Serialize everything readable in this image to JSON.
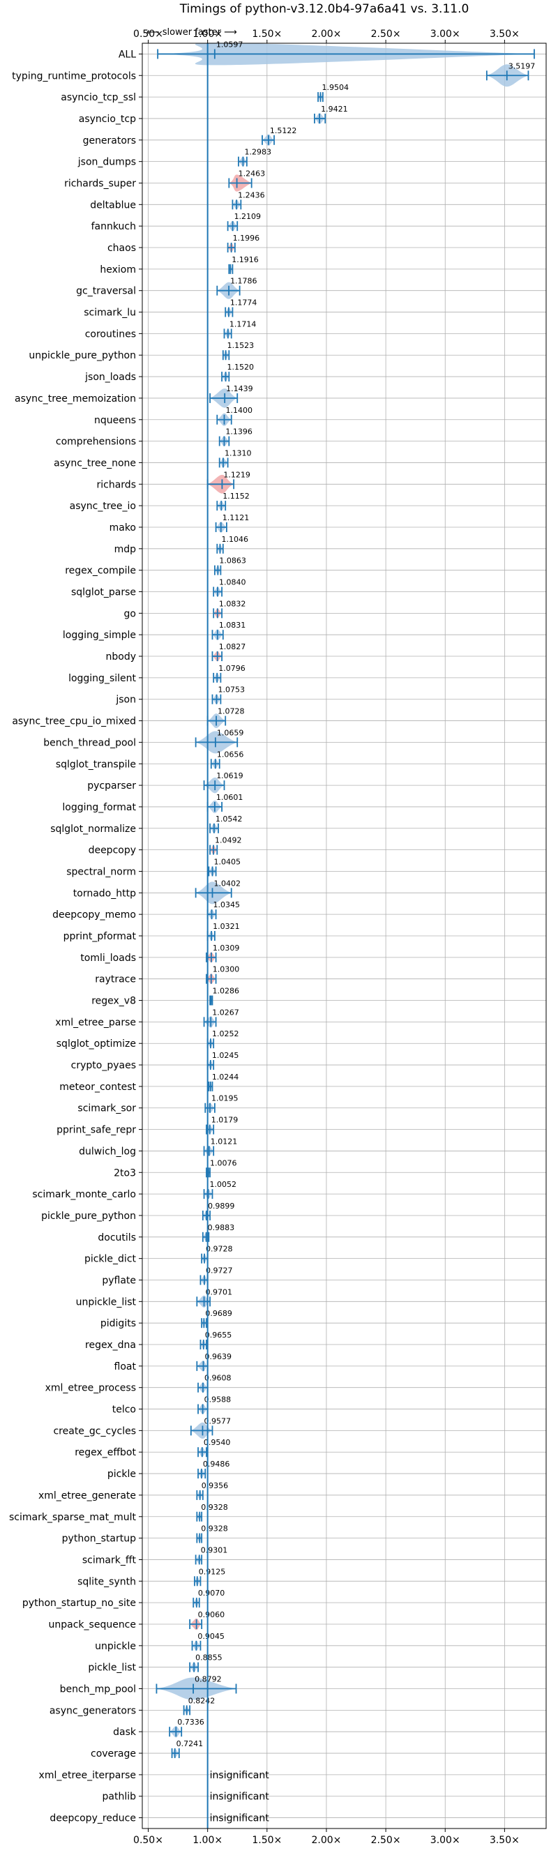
{
  "chart_data": {
    "type": "violin",
    "title": "Timings of python-v3.12.0b4-97a6a41 vs. 3.11.0",
    "direction_note": "⟵ slower   faster ⟶",
    "x_ticks": [
      "0.50×",
      "1.00×",
      "1.50×",
      "2.00×",
      "2.50×",
      "3.00×",
      "3.50×"
    ],
    "x_tick_values": [
      0.5,
      1.0,
      1.5,
      2.0,
      2.5,
      3.0,
      3.5
    ],
    "xlim": [
      0.45,
      3.85
    ],
    "reference_line": 1.0,
    "grid": true,
    "colors": {
      "faster": "#1f77b4",
      "slower": "#d62728",
      "violin_faster": "#a9c8e4",
      "violin_slower": "#f1a7a8"
    },
    "insignificant_label": "insignificant",
    "categories": [
      "ALL",
      "typing_runtime_protocols",
      "asyncio_tcp_ssl",
      "asyncio_tcp",
      "generators",
      "json_dumps",
      "richards_super",
      "deltablue",
      "fannkuch",
      "chaos",
      "hexiom",
      "gc_traversal",
      "scimark_lu",
      "coroutines",
      "unpickle_pure_python",
      "json_loads",
      "async_tree_memoization",
      "nqueens",
      "comprehensions",
      "async_tree_none",
      "richards",
      "async_tree_io",
      "mako",
      "mdp",
      "regex_compile",
      "sqlglot_parse",
      "go",
      "logging_simple",
      "nbody",
      "logging_silent",
      "json",
      "async_tree_cpu_io_mixed",
      "bench_thread_pool",
      "sqlglot_transpile",
      "pycparser",
      "logging_format",
      "sqlglot_normalize",
      "deepcopy",
      "spectral_norm",
      "tornado_http",
      "deepcopy_memo",
      "pprint_pformat",
      "tomli_loads",
      "raytrace",
      "regex_v8",
      "xml_etree_parse",
      "sqlglot_optimize",
      "crypto_pyaes",
      "meteor_contest",
      "scimark_sor",
      "pprint_safe_repr",
      "dulwich_log",
      "2to3",
      "scimark_monte_carlo",
      "pickle_pure_python",
      "docutils",
      "pickle_dict",
      "pyflate",
      "unpickle_list",
      "pidigits",
      "regex_dna",
      "float",
      "xml_etree_process",
      "telco",
      "create_gc_cycles",
      "regex_effbot",
      "pickle",
      "xml_etree_generate",
      "scimark_sparse_mat_mult",
      "python_startup",
      "scimark_fft",
      "sqlite_synth",
      "python_startup_no_site",
      "unpack_sequence",
      "unpickle",
      "pickle_list",
      "bench_mp_pool",
      "async_generators",
      "dask",
      "coverage",
      "xml_etree_iterparse",
      "pathlib",
      "deepcopy_reduce"
    ],
    "values": [
      1.0597,
      3.5197,
      1.9504,
      1.9421,
      1.5122,
      1.2983,
      1.2463,
      1.2436,
      1.2109,
      1.1996,
      1.1916,
      1.1786,
      1.1774,
      1.1714,
      1.1523,
      1.152,
      1.1439,
      1.14,
      1.1396,
      1.131,
      1.1219,
      1.1152,
      1.1121,
      1.1046,
      1.0863,
      1.084,
      1.0832,
      1.0831,
      1.0827,
      1.0796,
      1.0753,
      1.0728,
      1.0659,
      1.0656,
      1.0619,
      1.0601,
      1.0542,
      1.0492,
      1.0405,
      1.0402,
      1.0345,
      1.0321,
      1.0309,
      1.03,
      1.0286,
      1.0267,
      1.0252,
      1.0245,
      1.0244,
      1.0195,
      1.0179,
      1.0121,
      1.0076,
      1.0052,
      0.9899,
      0.9883,
      0.9728,
      0.9727,
      0.9701,
      0.9689,
      0.9655,
      0.9639,
      0.9608,
      0.9588,
      0.9577,
      0.954,
      0.9486,
      0.9356,
      0.9328,
      0.9328,
      0.9301,
      0.9125,
      0.907,
      0.906,
      0.9045,
      0.8855,
      0.8792,
      0.8242,
      0.7336,
      0.7241,
      null,
      null,
      null
    ],
    "value_labels": [
      "1.0597",
      "3.5197",
      "1.9504",
      "1.9421",
      "1.5122",
      "1.2983",
      "1.2463",
      "1.2436",
      "1.2109",
      "1.1996",
      "1.1916",
      "1.1786",
      "1.1774",
      "1.1714",
      "1.1523",
      "1.1520",
      "1.1439",
      "1.1400",
      "1.1396",
      "1.1310",
      "1.1219",
      "1.1152",
      "1.1121",
      "1.1046",
      "1.0863",
      "1.0840",
      "1.0832",
      "1.0831",
      "1.0827",
      "1.0796",
      "1.0753",
      "1.0728",
      "1.0659",
      "1.0656",
      "1.0619",
      "1.0601",
      "1.0542",
      "1.0492",
      "1.0405",
      "1.0402",
      "1.0345",
      "1.0321",
      "1.0309",
      "1.0300",
      "1.0286",
      "1.0267",
      "1.0252",
      "1.0245",
      "1.0244",
      "1.0195",
      "1.0179",
      "1.0121",
      "1.0076",
      "1.0052",
      "0.9899",
      "0.9883",
      "0.9728",
      "0.9727",
      "0.9701",
      "0.9689",
      "0.9655",
      "0.9639",
      "0.9608",
      "0.9588",
      "0.9577",
      "0.9540",
      "0.9486",
      "0.9356",
      "0.9328",
      "0.9328",
      "0.9301",
      "0.9125",
      "0.9070",
      "0.9060",
      "0.9045",
      "0.8855",
      "0.8792",
      "0.8242",
      "0.7336",
      "0.7241",
      "insignificant",
      "insignificant",
      "insignificant"
    ],
    "ranges": [
      [
        0.58,
        3.75
      ],
      [
        3.35,
        3.7
      ],
      [
        1.93,
        1.97
      ],
      [
        1.9,
        1.99
      ],
      [
        1.46,
        1.56
      ],
      [
        1.26,
        1.33
      ],
      [
        1.18,
        1.37
      ],
      [
        1.21,
        1.28
      ],
      [
        1.17,
        1.25
      ],
      [
        1.17,
        1.23
      ],
      [
        1.18,
        1.21
      ],
      [
        1.08,
        1.27
      ],
      [
        1.15,
        1.21
      ],
      [
        1.14,
        1.2
      ],
      [
        1.13,
        1.18
      ],
      [
        1.12,
        1.18
      ],
      [
        1.02,
        1.25
      ],
      [
        1.08,
        1.2
      ],
      [
        1.1,
        1.18
      ],
      [
        1.1,
        1.17
      ],
      [
        1.0,
        1.22
      ],
      [
        1.08,
        1.15
      ],
      [
        1.07,
        1.16
      ],
      [
        1.08,
        1.13
      ],
      [
        1.06,
        1.11
      ],
      [
        1.05,
        1.12
      ],
      [
        1.05,
        1.12
      ],
      [
        1.04,
        1.13
      ],
      [
        1.04,
        1.12
      ],
      [
        1.05,
        1.11
      ],
      [
        1.04,
        1.11
      ],
      [
        1.0,
        1.15
      ],
      [
        0.9,
        1.25
      ],
      [
        1.03,
        1.1
      ],
      [
        0.97,
        1.14
      ],
      [
        1.0,
        1.12
      ],
      [
        1.02,
        1.09
      ],
      [
        1.02,
        1.08
      ],
      [
        1.01,
        1.07
      ],
      [
        0.9,
        1.2
      ],
      [
        1.0,
        1.07
      ],
      [
        1.0,
        1.06
      ],
      [
        0.99,
        1.07
      ],
      [
        0.99,
        1.07
      ],
      [
        1.02,
        1.04
      ],
      [
        0.97,
        1.07
      ],
      [
        1.0,
        1.05
      ],
      [
        1.0,
        1.05
      ],
      [
        1.01,
        1.04
      ],
      [
        0.98,
        1.06
      ],
      [
        0.99,
        1.05
      ],
      [
        0.97,
        1.05
      ],
      [
        0.99,
        1.02
      ],
      [
        0.97,
        1.04
      ],
      [
        0.96,
        1.02
      ],
      [
        0.96,
        1.01
      ],
      [
        0.95,
        1.0
      ],
      [
        0.94,
        1.0
      ],
      [
        0.91,
        1.02
      ],
      [
        0.95,
        0.99
      ],
      [
        0.94,
        0.99
      ],
      [
        0.91,
        1.0
      ],
      [
        0.92,
        1.0
      ],
      [
        0.92,
        1.0
      ],
      [
        0.86,
        1.04
      ],
      [
        0.92,
        0.99
      ],
      [
        0.92,
        0.98
      ],
      [
        0.91,
        0.96
      ],
      [
        0.91,
        0.95
      ],
      [
        0.91,
        0.95
      ],
      [
        0.9,
        0.95
      ],
      [
        0.89,
        0.94
      ],
      [
        0.88,
        0.93
      ],
      [
        0.85,
        0.95
      ],
      [
        0.87,
        0.94
      ],
      [
        0.85,
        0.92
      ],
      [
        0.57,
        1.24
      ],
      [
        0.8,
        0.85
      ],
      [
        0.68,
        0.78
      ],
      [
        0.7,
        0.76
      ],
      null,
      null,
      null
    ],
    "slower_highlight": [
      "richards_super",
      "chaos",
      "richards",
      "tomli_loads",
      "raytrace",
      "unpack_sequence",
      "nbody",
      "go",
      "deepcopy"
    ]
  }
}
